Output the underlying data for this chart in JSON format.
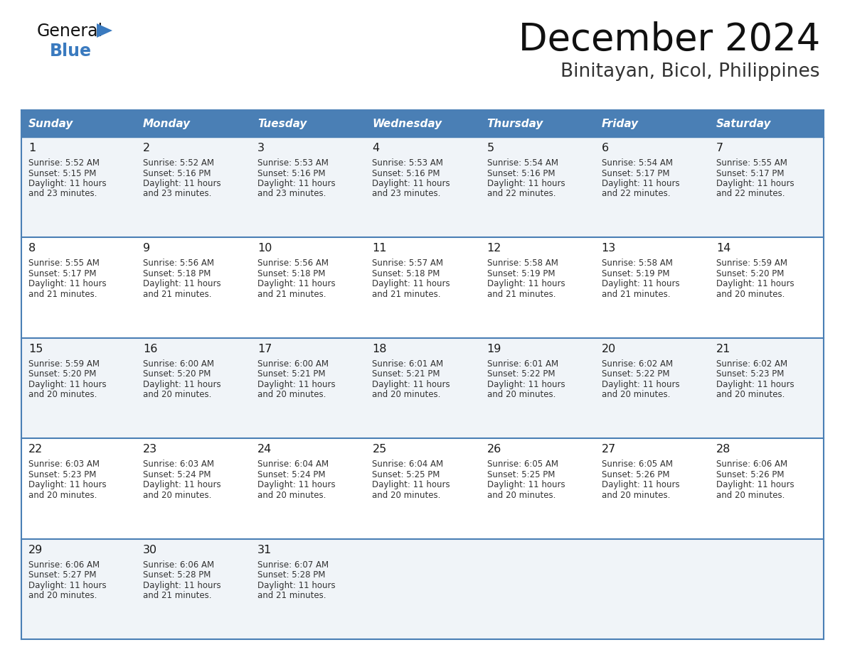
{
  "title": "December 2024",
  "subtitle": "Binitayan, Bicol, Philippines",
  "header_bg": "#4a7fb5",
  "header_text_color": "#ffffff",
  "row_bg_odd": "#f0f4f8",
  "row_bg_even": "#ffffff",
  "border_color": "#4a7fb5",
  "day_names": [
    "Sunday",
    "Monday",
    "Tuesday",
    "Wednesday",
    "Thursday",
    "Friday",
    "Saturday"
  ],
  "days": [
    {
      "day": 1,
      "col": 0,
      "row": 0,
      "sunrise": "5:52 AM",
      "sunset": "5:15 PM",
      "daylight_suffix": "23 minutes."
    },
    {
      "day": 2,
      "col": 1,
      "row": 0,
      "sunrise": "5:52 AM",
      "sunset": "5:16 PM",
      "daylight_suffix": "23 minutes."
    },
    {
      "day": 3,
      "col": 2,
      "row": 0,
      "sunrise": "5:53 AM",
      "sunset": "5:16 PM",
      "daylight_suffix": "23 minutes."
    },
    {
      "day": 4,
      "col": 3,
      "row": 0,
      "sunrise": "5:53 AM",
      "sunset": "5:16 PM",
      "daylight_suffix": "23 minutes."
    },
    {
      "day": 5,
      "col": 4,
      "row": 0,
      "sunrise": "5:54 AM",
      "sunset": "5:16 PM",
      "daylight_suffix": "22 minutes."
    },
    {
      "day": 6,
      "col": 5,
      "row": 0,
      "sunrise": "5:54 AM",
      "sunset": "5:17 PM",
      "daylight_suffix": "22 minutes."
    },
    {
      "day": 7,
      "col": 6,
      "row": 0,
      "sunrise": "5:55 AM",
      "sunset": "5:17 PM",
      "daylight_suffix": "22 minutes."
    },
    {
      "day": 8,
      "col": 0,
      "row": 1,
      "sunrise": "5:55 AM",
      "sunset": "5:17 PM",
      "daylight_suffix": "21 minutes."
    },
    {
      "day": 9,
      "col": 1,
      "row": 1,
      "sunrise": "5:56 AM",
      "sunset": "5:18 PM",
      "daylight_suffix": "21 minutes."
    },
    {
      "day": 10,
      "col": 2,
      "row": 1,
      "sunrise": "5:56 AM",
      "sunset": "5:18 PM",
      "daylight_suffix": "21 minutes."
    },
    {
      "day": 11,
      "col": 3,
      "row": 1,
      "sunrise": "5:57 AM",
      "sunset": "5:18 PM",
      "daylight_suffix": "21 minutes."
    },
    {
      "day": 12,
      "col": 4,
      "row": 1,
      "sunrise": "5:58 AM",
      "sunset": "5:19 PM",
      "daylight_suffix": "21 minutes."
    },
    {
      "day": 13,
      "col": 5,
      "row": 1,
      "sunrise": "5:58 AM",
      "sunset": "5:19 PM",
      "daylight_suffix": "21 minutes."
    },
    {
      "day": 14,
      "col": 6,
      "row": 1,
      "sunrise": "5:59 AM",
      "sunset": "5:20 PM",
      "daylight_suffix": "20 minutes."
    },
    {
      "day": 15,
      "col": 0,
      "row": 2,
      "sunrise": "5:59 AM",
      "sunset": "5:20 PM",
      "daylight_suffix": "20 minutes."
    },
    {
      "day": 16,
      "col": 1,
      "row": 2,
      "sunrise": "6:00 AM",
      "sunset": "5:20 PM",
      "daylight_suffix": "20 minutes."
    },
    {
      "day": 17,
      "col": 2,
      "row": 2,
      "sunrise": "6:00 AM",
      "sunset": "5:21 PM",
      "daylight_suffix": "20 minutes."
    },
    {
      "day": 18,
      "col": 3,
      "row": 2,
      "sunrise": "6:01 AM",
      "sunset": "5:21 PM",
      "daylight_suffix": "20 minutes."
    },
    {
      "day": 19,
      "col": 4,
      "row": 2,
      "sunrise": "6:01 AM",
      "sunset": "5:22 PM",
      "daylight_suffix": "20 minutes."
    },
    {
      "day": 20,
      "col": 5,
      "row": 2,
      "sunrise": "6:02 AM",
      "sunset": "5:22 PM",
      "daylight_suffix": "20 minutes."
    },
    {
      "day": 21,
      "col": 6,
      "row": 2,
      "sunrise": "6:02 AM",
      "sunset": "5:23 PM",
      "daylight_suffix": "20 minutes."
    },
    {
      "day": 22,
      "col": 0,
      "row": 3,
      "sunrise": "6:03 AM",
      "sunset": "5:23 PM",
      "daylight_suffix": "20 minutes."
    },
    {
      "day": 23,
      "col": 1,
      "row": 3,
      "sunrise": "6:03 AM",
      "sunset": "5:24 PM",
      "daylight_suffix": "20 minutes."
    },
    {
      "day": 24,
      "col": 2,
      "row": 3,
      "sunrise": "6:04 AM",
      "sunset": "5:24 PM",
      "daylight_suffix": "20 minutes."
    },
    {
      "day": 25,
      "col": 3,
      "row": 3,
      "sunrise": "6:04 AM",
      "sunset": "5:25 PM",
      "daylight_suffix": "20 minutes."
    },
    {
      "day": 26,
      "col": 4,
      "row": 3,
      "sunrise": "6:05 AM",
      "sunset": "5:25 PM",
      "daylight_suffix": "20 minutes."
    },
    {
      "day": 27,
      "col": 5,
      "row": 3,
      "sunrise": "6:05 AM",
      "sunset": "5:26 PM",
      "daylight_suffix": "20 minutes."
    },
    {
      "day": 28,
      "col": 6,
      "row": 3,
      "sunrise": "6:06 AM",
      "sunset": "5:26 PM",
      "daylight_suffix": "20 minutes."
    },
    {
      "day": 29,
      "col": 0,
      "row": 4,
      "sunrise": "6:06 AM",
      "sunset": "5:27 PM",
      "daylight_suffix": "20 minutes."
    },
    {
      "day": 30,
      "col": 1,
      "row": 4,
      "sunrise": "6:06 AM",
      "sunset": "5:28 PM",
      "daylight_suffix": "21 minutes."
    },
    {
      "day": 31,
      "col": 2,
      "row": 4,
      "sunrise": "6:07 AM",
      "sunset": "5:28 PM",
      "daylight_suffix": "21 minutes."
    }
  ],
  "logo_text1": "General",
  "logo_text2": "Blue",
  "logo_color1": "#111111",
  "logo_color2": "#3a7abf",
  "logo_triangle_color": "#3a7abf",
  "title_color": "#111111",
  "subtitle_color": "#333333"
}
